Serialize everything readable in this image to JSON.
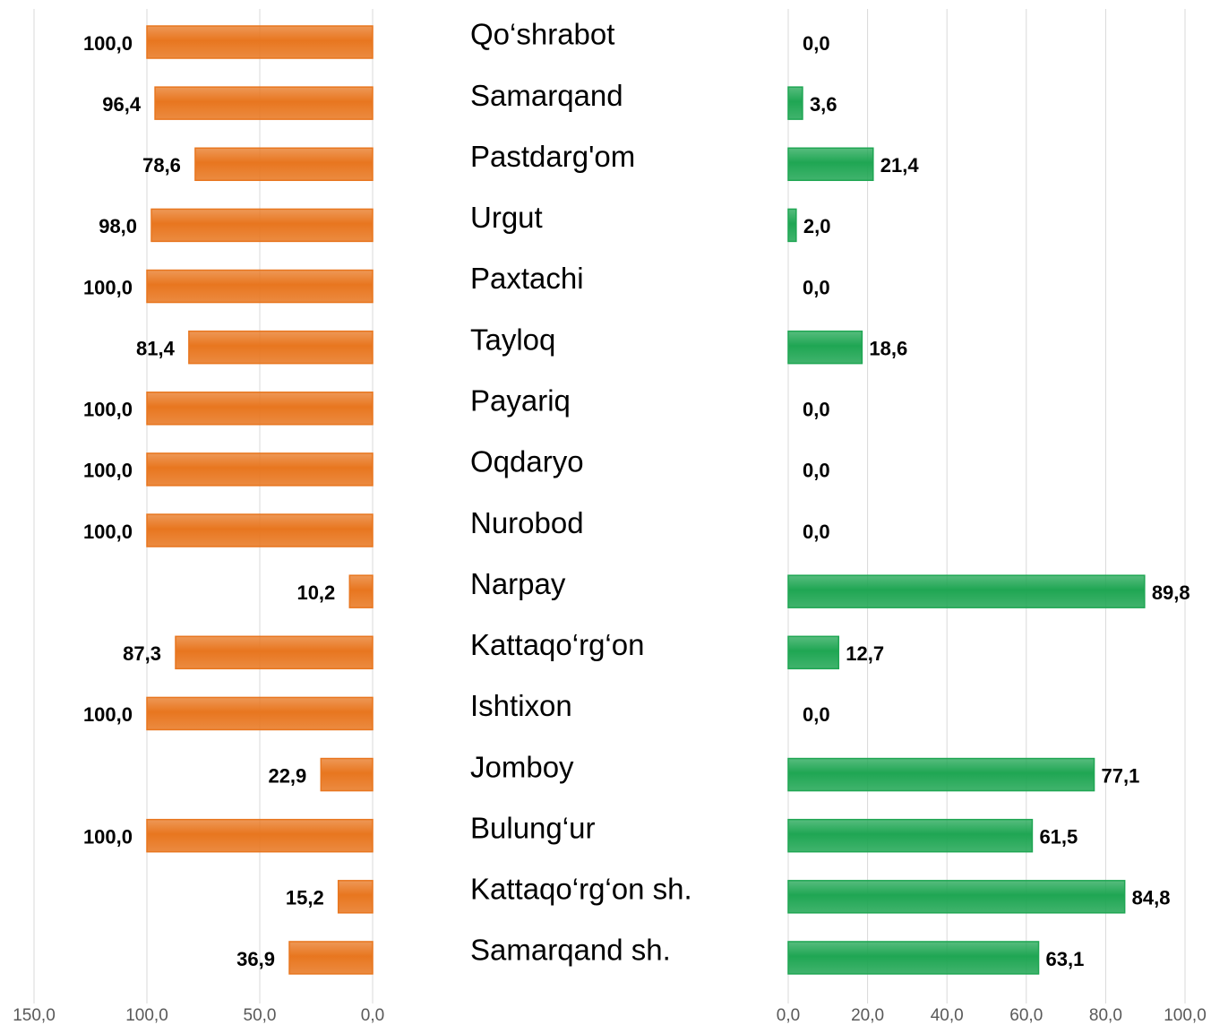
{
  "chart_data": [
    {
      "type": "bar",
      "orientation": "horizontal",
      "color": "#e8761f",
      "grid": true,
      "categories": [
        "Qo‘shrabot",
        "Samarqand",
        "Pastdarg'om",
        "Urgut",
        "Paxtachi",
        "Tayloq",
        "Payariq",
        "Oqdaryo",
        "Nurobod",
        "Narpay",
        "Kattaqo‘rg‘on",
        "Ishtixon",
        "Jomboy",
        "Bulung‘ur",
        "Kattaqo‘rg‘on sh.",
        "Samarqand sh."
      ],
      "values": [
        100.0,
        96.4,
        78.6,
        98.0,
        100.0,
        81.4,
        100.0,
        100.0,
        100.0,
        10.2,
        87.3,
        100.0,
        22.9,
        100.0,
        15.2,
        36.9
      ],
      "value_labels": [
        "100,0",
        "96,4",
        "78,6",
        "98,0",
        "100,0",
        "81,4",
        "100,0",
        "100,0",
        "100,0",
        "10,2",
        "87,3",
        "100,0",
        "22,9",
        "100,0",
        "15,2",
        "36,9"
      ],
      "xlim": [
        150,
        0
      ],
      "xticks": [
        {
          "value": 150,
          "label": "150,0"
        },
        {
          "value": 100,
          "label": "100,0"
        },
        {
          "value": 50,
          "label": "50,0"
        },
        {
          "value": 0,
          "label": "0,0"
        }
      ]
    },
    {
      "type": "bar",
      "orientation": "horizontal",
      "color": "#1fa653",
      "grid": true,
      "values": [
        0.0,
        3.6,
        21.4,
        2.0,
        0.0,
        18.6,
        0.0,
        0.0,
        0.0,
        89.8,
        12.7,
        0.0,
        77.1,
        61.5,
        84.8,
        63.1
      ],
      "value_labels": [
        "0,0",
        "3,6",
        "21,4",
        "2,0",
        "0,0",
        "18,6",
        "0,0",
        "0,0",
        "0,0",
        "89,8",
        "12,7",
        "0,0",
        "77,1",
        "61,5",
        "84,8",
        "63,1"
      ],
      "xlim": [
        0,
        100
      ],
      "xticks": [
        {
          "value": 0,
          "label": "0,0"
        },
        {
          "value": 20,
          "label": "20,0"
        },
        {
          "value": 40,
          "label": "40,0"
        },
        {
          "value": 60,
          "label": "60,0"
        },
        {
          "value": 80,
          "label": "80,0"
        },
        {
          "value": 100,
          "label": "100,0"
        }
      ]
    }
  ]
}
